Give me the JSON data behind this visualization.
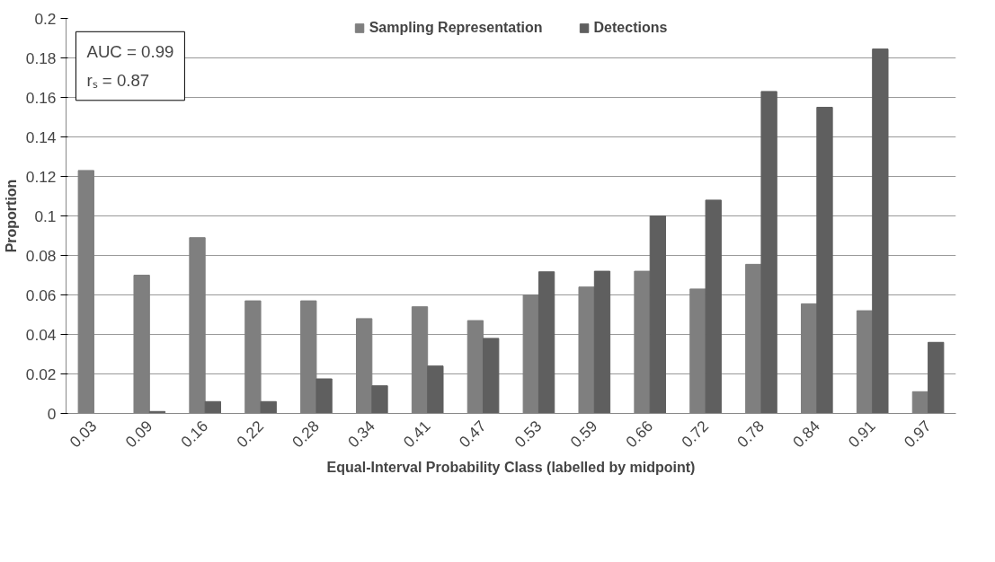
{
  "chart_data": {
    "type": "bar",
    "xlabel": "Equal-Interval Probability Class (labelled by midpoint)",
    "ylabel": "Proportion",
    "categories": [
      "0.03",
      "0.09",
      "0.16",
      "0.22",
      "0.28",
      "0.34",
      "0.41",
      "0.47",
      "0.53",
      "0.59",
      "0.66",
      "0.72",
      "0.78",
      "0.84",
      "0.91",
      "0.97"
    ],
    "series": [
      {
        "name": "Sampling Representation",
        "color": "#7f7f7f",
        "values": [
          0.123,
          0.07,
          0.089,
          0.057,
          0.057,
          0.048,
          0.054,
          0.047,
          0.06,
          0.064,
          0.072,
          0.063,
          0.0755,
          0.0555,
          0.052,
          0.011
        ]
      },
      {
        "name": "Detections",
        "color": "#5f5f5f",
        "values": [
          0,
          0.001,
          0.006,
          0.006,
          0.0175,
          0.014,
          0.024,
          0.038,
          0.0717,
          0.072,
          0.1,
          0.108,
          0.163,
          0.155,
          0.1845,
          0.036
        ]
      }
    ],
    "ylim": [
      0,
      0.2
    ],
    "yticks": [
      0,
      0.02,
      0.04,
      0.06,
      0.08,
      0.1,
      0.12,
      0.14,
      0.16,
      0.18,
      0.2
    ],
    "grid": "y",
    "legend": "top",
    "annotations": [
      "AUC = 0.99",
      "rₛ = 0.87"
    ]
  }
}
